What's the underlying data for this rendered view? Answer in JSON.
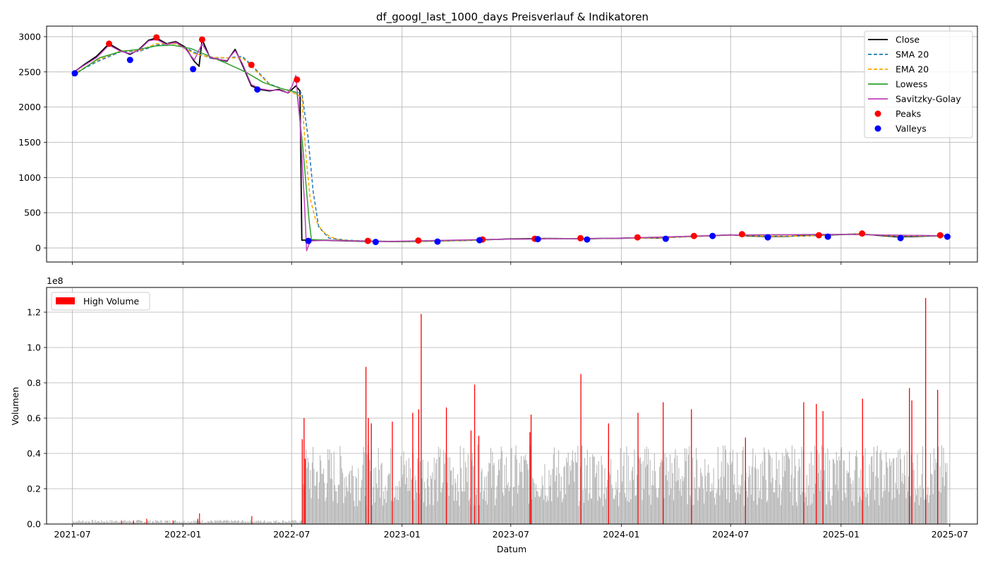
{
  "chart_data": [
    {
      "type": "line",
      "title": "df_googl_last_1000_days Preisverlauf & Indikatoren",
      "xlabel": "",
      "ylabel": "",
      "x_tick_labels": [
        "2021-07",
        "2022-01",
        "2022-07",
        "2023-01",
        "2023-07",
        "2024-01",
        "2024-07",
        "2025-01",
        "2025-07"
      ],
      "x_range": [
        "2021-05-19",
        "2025-08-16"
      ],
      "y_ticks": [
        0,
        500,
        1000,
        1500,
        2000,
        2500,
        3000
      ],
      "ylim": [
        -200,
        3150
      ],
      "grid": true,
      "legend_position": "top-right",
      "series": [
        {
          "name": "Close",
          "style": "solid",
          "color": "#000000",
          "x": [
            "2021-07-01",
            "2021-07-20",
            "2021-08-10",
            "2021-08-31",
            "2021-09-20",
            "2021-10-05",
            "2021-10-20",
            "2021-11-05",
            "2021-11-18",
            "2021-12-05",
            "2021-12-20",
            "2022-01-05",
            "2022-01-20",
            "2022-01-28",
            "2022-02-02",
            "2022-02-15",
            "2022-03-01",
            "2022-03-15",
            "2022-03-29",
            "2022-04-10",
            "2022-04-25",
            "2022-05-10",
            "2022-05-25",
            "2022-06-10",
            "2022-06-25",
            "2022-07-08",
            "2022-07-15",
            "2022-07-18",
            "2022-08-01",
            "2022-09-01",
            "2022-10-01",
            "2022-11-01",
            "2022-12-01",
            "2023-01-01",
            "2023-02-01",
            "2023-03-01",
            "2023-04-01",
            "2023-05-01",
            "2023-06-01",
            "2023-07-01",
            "2023-08-01",
            "2023-09-01",
            "2023-10-01",
            "2023-11-01",
            "2023-12-01",
            "2024-01-01",
            "2024-02-01",
            "2024-03-01",
            "2024-04-01",
            "2024-05-01",
            "2024-06-01",
            "2024-07-01",
            "2024-08-01",
            "2024-09-01",
            "2024-10-01",
            "2024-11-01",
            "2024-12-01",
            "2025-01-01",
            "2025-02-01",
            "2025-03-01",
            "2025-04-01",
            "2025-05-01",
            "2025-06-01",
            "2025-06-27"
          ],
          "y": [
            2480,
            2600,
            2720,
            2900,
            2800,
            2750,
            2820,
            2950,
            2980,
            2900,
            2930,
            2850,
            2650,
            2580,
            2960,
            2700,
            2680,
            2650,
            2820,
            2600,
            2300,
            2250,
            2230,
            2250,
            2200,
            2300,
            2230,
            110,
            115,
            108,
            100,
            95,
            92,
            90,
            95,
            100,
            105,
            110,
            120,
            128,
            132,
            135,
            132,
            130,
            135,
            138,
            145,
            140,
            155,
            165,
            175,
            185,
            170,
            162,
            165,
            175,
            180,
            190,
            200,
            180,
            160,
            162,
            170,
            175
          ]
        },
        {
          "name": "SMA 20",
          "style": "dashed",
          "color": "#1f77b4",
          "x": [
            "2021-07-01",
            "2021-08-10",
            "2021-09-20",
            "2021-10-20",
            "2021-11-18",
            "2021-12-20",
            "2022-01-20",
            "2022-02-15",
            "2022-03-15",
            "2022-04-10",
            "2022-04-25",
            "2022-05-25",
            "2022-06-25",
            "2022-07-18",
            "2022-07-28",
            "2022-08-06",
            "2022-08-15",
            "2022-09-01",
            "2022-10-01",
            "2022-11-01",
            "2023-01-01",
            "2023-03-01",
            "2023-05-01",
            "2023-07-01",
            "2023-09-01",
            "2023-11-01",
            "2024-01-01",
            "2024-03-01",
            "2024-05-01",
            "2024-07-01",
            "2024-09-01",
            "2024-11-01",
            "2025-01-01",
            "2025-02-01",
            "2025-04-01",
            "2025-06-27"
          ],
          "y": [
            2460,
            2640,
            2790,
            2790,
            2880,
            2910,
            2780,
            2700,
            2700,
            2720,
            2600,
            2330,
            2230,
            2200,
            1600,
            800,
            300,
            140,
            110,
            100,
            90,
            98,
            110,
            125,
            133,
            132,
            138,
            142,
            162,
            182,
            166,
            170,
            192,
            198,
            168,
            172
          ]
        },
        {
          "name": "EMA 20",
          "style": "dashed",
          "color": "#ffa500",
          "x": [
            "2021-07-01",
            "2021-08-10",
            "2021-09-20",
            "2021-10-20",
            "2021-11-18",
            "2021-12-20",
            "2022-01-20",
            "2022-02-15",
            "2022-03-15",
            "2022-04-10",
            "2022-04-25",
            "2022-05-25",
            "2022-06-25",
            "2022-07-18",
            "2022-07-25",
            "2022-08-01",
            "2022-08-10",
            "2022-08-20",
            "2022-09-01",
            "2022-09-15",
            "2022-10-01",
            "2022-11-01",
            "2023-01-01",
            "2023-03-01",
            "2023-05-01",
            "2023-07-01",
            "2023-09-01",
            "2023-11-01",
            "2024-01-01",
            "2024-03-01",
            "2024-05-01",
            "2024-07-01",
            "2024-09-01",
            "2024-11-01",
            "2025-01-01",
            "2025-02-01",
            "2025-04-01",
            "2025-06-27"
          ],
          "y": [
            2460,
            2660,
            2800,
            2800,
            2900,
            2900,
            2760,
            2710,
            2700,
            2700,
            2580,
            2320,
            2230,
            2150,
            1300,
            700,
            400,
            250,
            170,
            120,
            105,
            98,
            90,
            98,
            110,
            125,
            133,
            132,
            138,
            142,
            162,
            182,
            166,
            170,
            192,
            198,
            168,
            172
          ]
        },
        {
          "name": "Lowess",
          "style": "solid",
          "color": "#2ca02c",
          "x": [
            "2021-07-01",
            "2021-08-15",
            "2021-09-20",
            "2021-10-20",
            "2021-11-18",
            "2021-12-15",
            "2022-01-15",
            "2022-02-15",
            "2022-03-15",
            "2022-04-15",
            "2022-05-15",
            "2022-06-15",
            "2022-07-01",
            "2022-07-10",
            "2022-07-20",
            "2022-07-30",
            "2022-08-03",
            "2022-08-15",
            "2022-10-01",
            "2023-01-01",
            "2023-06-01",
            "2024-01-01",
            "2024-07-01",
            "2025-01-01",
            "2025-06-27"
          ],
          "y": [
            2440,
            2700,
            2790,
            2820,
            2870,
            2880,
            2830,
            2720,
            2620,
            2500,
            2350,
            2260,
            2230,
            2200,
            1400,
            400,
            120,
            115,
            102,
            92,
            122,
            138,
            183,
            192,
            172
          ]
        },
        {
          "name": "Savitzky-Golay",
          "style": "solid",
          "color": "#bf40bf",
          "x": [
            "2021-07-01",
            "2021-07-20",
            "2021-08-10",
            "2021-08-31",
            "2021-09-20",
            "2021-10-05",
            "2021-10-20",
            "2021-11-05",
            "2021-11-18",
            "2021-12-05",
            "2021-12-20",
            "2022-01-05",
            "2022-01-20",
            "2022-02-02",
            "2022-02-15",
            "2022-03-01",
            "2022-03-15",
            "2022-03-29",
            "2022-04-10",
            "2022-04-25",
            "2022-05-10",
            "2022-05-25",
            "2022-06-10",
            "2022-06-25",
            "2022-07-02",
            "2022-07-08",
            "2022-07-15",
            "2022-07-22",
            "2022-07-26",
            "2022-08-01",
            "2022-09-01",
            "2022-12-01",
            "2023-06-01",
            "2024-01-01",
            "2024-07-01",
            "2025-01-01",
            "2025-06-27"
          ],
          "y": [
            2480,
            2590,
            2700,
            2880,
            2790,
            2760,
            2810,
            2940,
            2960,
            2890,
            2920,
            2830,
            2670,
            2900,
            2710,
            2680,
            2660,
            2800,
            2620,
            2320,
            2260,
            2240,
            2240,
            2200,
            2300,
            2450,
            1800,
            700,
            -40,
            100,
            108,
            92,
            122,
            138,
            183,
            192,
            172
          ]
        }
      ],
      "peaks": {
        "name": "Peaks",
        "color": "#ff0000",
        "x": [
          "2021-08-31",
          "2021-11-18",
          "2022-02-02",
          "2022-04-25",
          "2022-07-10",
          "2022-11-05",
          "2023-01-28",
          "2023-05-15",
          "2023-08-10",
          "2023-10-25",
          "2024-01-28",
          "2024-05-01",
          "2024-07-20",
          "2024-11-25",
          "2025-02-05",
          "2025-06-15"
        ],
        "y": [
          2900,
          2990,
          2960,
          2600,
          2390,
          100,
          105,
          120,
          130,
          138,
          150,
          170,
          195,
          180,
          205,
          180
        ]
      },
      "valleys": {
        "name": "Valleys",
        "color": "#0000ff",
        "x": [
          "2021-07-05",
          "2021-10-05",
          "2022-01-18",
          "2022-05-05",
          "2022-07-29",
          "2022-11-18",
          "2023-03-01",
          "2023-05-10",
          "2023-08-15",
          "2023-11-05",
          "2024-03-15",
          "2024-06-01",
          "2024-09-01",
          "2024-12-10",
          "2025-04-10",
          "2025-06-27"
        ],
        "y": [
          2480,
          2670,
          2540,
          2250,
          100,
          85,
          90,
          110,
          125,
          120,
          130,
          170,
          150,
          160,
          140,
          160
        ]
      }
    },
    {
      "type": "bar",
      "title": "",
      "xlabel": "Datum",
      "ylabel": "Volumen",
      "y_offset_label": "1e8",
      "y_tick_labels": [
        "0.0",
        "0.2",
        "0.4",
        "0.6",
        "0.8",
        "1.0",
        "1.2"
      ],
      "ylim": [
        0,
        1.34
      ],
      "x_tick_labels": [
        "2021-07",
        "2022-01",
        "2022-07",
        "2023-01",
        "2023-07",
        "2024-01",
        "2024-07",
        "2025-01",
        "2025-07"
      ],
      "grid": true,
      "legend_position": "top-left",
      "base_color": "#b3b3b3",
      "series": [
        {
          "name": "High Volume",
          "color": "#ff0000",
          "x": [
            "2022-07-18",
            "2022-07-21",
            "2022-07-23",
            "2022-11-01",
            "2022-11-05",
            "2022-11-10",
            "2022-12-15",
            "2023-01-18",
            "2023-01-28",
            "2023-02-01",
            "2023-03-15",
            "2023-04-25",
            "2023-05-01",
            "2023-05-08",
            "2023-08-01",
            "2023-08-03",
            "2023-10-25",
            "2023-12-10",
            "2024-01-28",
            "2024-03-10",
            "2024-04-26",
            "2024-07-25",
            "2024-10-30",
            "2024-11-20",
            "2024-12-01",
            "2025-02-05",
            "2025-04-24",
            "2025-04-28",
            "2025-05-21",
            "2025-06-10"
          ],
          "values": [
            0.48,
            0.6,
            0.37,
            0.89,
            0.6,
            0.57,
            0.58,
            0.63,
            0.65,
            1.19,
            0.66,
            0.53,
            0.79,
            0.5,
            0.52,
            0.62,
            0.85,
            0.57,
            0.63,
            0.69,
            0.65,
            0.49,
            0.69,
            0.68,
            0.64,
            0.71,
            0.77,
            0.7,
            1.28,
            0.76
          ]
        }
      ]
    }
  ],
  "legend_top": [
    "Close",
    "SMA 20",
    "EMA 20",
    "Lowess",
    "Savitzky-Golay",
    "Peaks",
    "Valleys"
  ],
  "legend_bottom": [
    "High Volume"
  ]
}
